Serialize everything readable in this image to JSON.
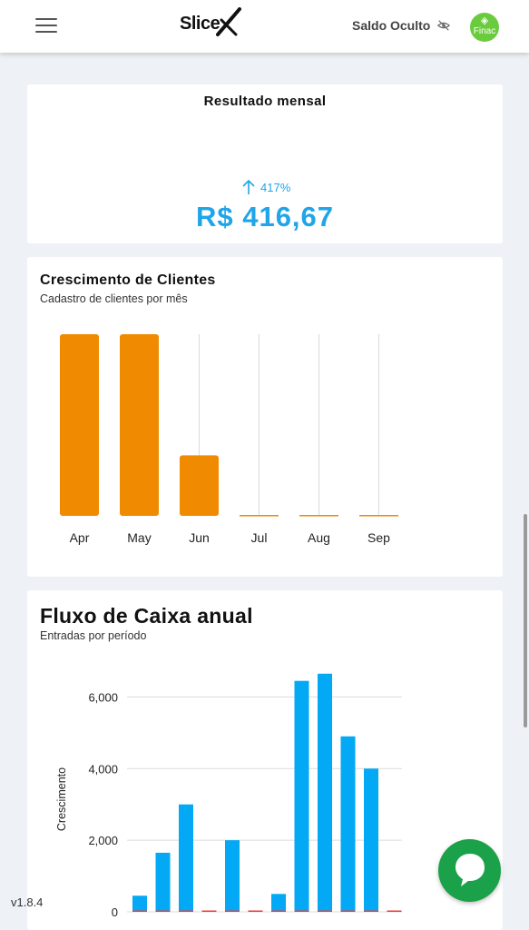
{
  "header": {
    "logo_text": "Slice",
    "balance_label": "Saldo Oculto",
    "avatar_text": "Finac"
  },
  "monthly_result": {
    "title": "Resultado mensal",
    "growth_pct": "417%",
    "value": "R$ 416,67"
  },
  "colors": {
    "accent_blue": "#1fa5e8",
    "bar_orange": "#f08a00",
    "chart_blue": "#03a9f4",
    "chart_red": "#f03a3a",
    "chat_green": "#1aa14a"
  },
  "chart_data": [
    {
      "type": "bar",
      "title": "Crescimento de Clientes",
      "subtitle": "Cadastro de clientes por mês",
      "categories": [
        "Apr",
        "May",
        "Jun",
        "Jul",
        "Aug",
        "Sep"
      ],
      "values": [
        3,
        3,
        1,
        0,
        0,
        0
      ],
      "ylim": [
        0,
        3
      ],
      "grid": false
    },
    {
      "type": "bar",
      "title": "Fluxo de Caixa anual",
      "subtitle": "Entradas por período",
      "ylabel": "Crescimento",
      "yticks": [
        "0",
        "2,000",
        "4,000",
        "6,000"
      ],
      "ylim": [
        0,
        7000
      ],
      "series": [
        {
          "values": [
            450,
            1650,
            3000,
            0,
            2000,
            0,
            500,
            6450,
            6650,
            4900,
            4000,
            0
          ]
        },
        {
          "values": [
            0,
            0,
            0,
            0,
            0,
            0,
            0,
            0,
            0,
            0,
            0,
            0
          ]
        }
      ],
      "grid": true
    }
  ],
  "footer": {
    "version": "v1.8.4"
  }
}
